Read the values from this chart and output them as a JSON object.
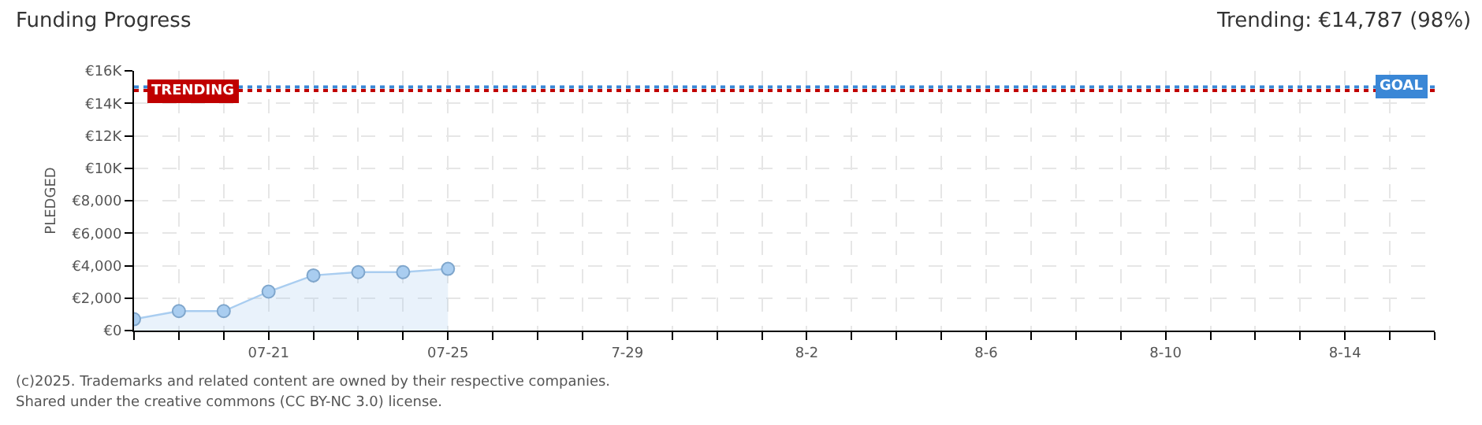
{
  "chart_data": {
    "type": "area",
    "title": "Funding Progress",
    "subtitle": "Trending: €14,787 (98%)",
    "ylabel": "PLEDGED",
    "x": [
      "--07-18",
      "--07-19",
      "--07-20",
      "--07-21",
      "--07-22",
      "--07-23",
      "--07-24",
      "--07-25"
    ],
    "series": [
      {
        "color": "#a9cdf0",
        "values": [
          700,
          1200,
          1200,
          2400,
          3400,
          3600,
          3600,
          3800
        ]
      }
    ],
    "xlim": [
      "--07-18",
      "--08-16"
    ],
    "xticks": [
      {
        "value": "--07-18",
        "label": null
      },
      {
        "value": "--07-19",
        "label": null
      },
      {
        "value": "--07-20",
        "label": null
      },
      {
        "value": "--07-21",
        "label": "07-21"
      },
      {
        "value": "--07-22",
        "label": null
      },
      {
        "value": "--07-23",
        "label": null
      },
      {
        "value": "--07-24",
        "label": null
      },
      {
        "value": "--07-25",
        "label": "07-25"
      },
      {
        "value": "--07-26",
        "label": null
      },
      {
        "value": "--07-27",
        "label": null
      },
      {
        "value": "--07-28",
        "label": null
      },
      {
        "value": "--07-29",
        "label": "7-29"
      },
      {
        "value": "--07-30",
        "label": null
      },
      {
        "value": "--07-31",
        "label": null
      },
      {
        "value": "--08-01",
        "label": null
      },
      {
        "value": "--08-02",
        "label": "8-2"
      },
      {
        "value": "--08-03",
        "label": null
      },
      {
        "value": "--08-04",
        "label": null
      },
      {
        "value": "--08-05",
        "label": null
      },
      {
        "value": "--08-06",
        "label": "8-6"
      },
      {
        "value": "--08-07",
        "label": null
      },
      {
        "value": "--08-08",
        "label": null
      },
      {
        "value": "--08-09",
        "label": null
      },
      {
        "value": "--08-10",
        "label": "8-10"
      },
      {
        "value": "--08-11",
        "label": null
      },
      {
        "value": "--08-12",
        "label": null
      },
      {
        "value": "--08-13",
        "label": null
      },
      {
        "value": "--08-14",
        "label": "8-14"
      },
      {
        "value": "--08-15",
        "label": null
      },
      {
        "value": "--08-16",
        "label": null
      }
    ],
    "ylim": [
      0,
      16000
    ],
    "yticks": [
      {
        "value": 0,
        "label": "€0"
      },
      {
        "value": 2000,
        "label": "€2,000"
      },
      {
        "value": 4000,
        "label": "€4,000"
      },
      {
        "value": 6000,
        "label": "€6,000"
      },
      {
        "value": 8000,
        "label": "€8,000"
      },
      {
        "value": 10000,
        "label": "€10K"
      },
      {
        "value": 12000,
        "label": "€12K"
      },
      {
        "value": 14000,
        "label": "€14K"
      },
      {
        "value": 16000,
        "label": "€16K"
      }
    ],
    "ref_lines": [
      {
        "axis": "y",
        "value": 14787,
        "label": "TRENDING",
        "color": "#c00000",
        "line_style": "dotted"
      },
      {
        "axis": "y",
        "value": 15000,
        "label": "GOAL",
        "color": "#3a87d6",
        "line_style": "dotted"
      }
    ],
    "annotations": [
      "(c)2025. Trademarks and related content are owned by their respective companies.",
      "Shared under the creative commons (CC BY-NC 3.0) license."
    ],
    "grid": true,
    "marker": "circle",
    "line_style": "solid"
  }
}
